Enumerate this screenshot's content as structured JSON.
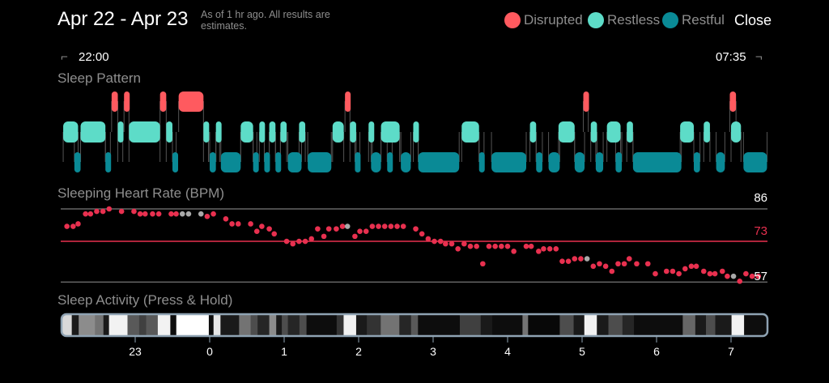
{
  "header": {
    "title": "Apr 22 - Apr 23",
    "subtitle": "As of 1 hr ago. All results are estimates.",
    "close_label": "Close"
  },
  "legend": [
    {
      "label": "Disrupted",
      "color": "#ff5a5f"
    },
    {
      "label": "Restless",
      "color": "#5ddcc8"
    },
    {
      "label": "Restful",
      "color": "#0a8a96"
    }
  ],
  "timeline": {
    "start_label": "22:00",
    "end_label": "07:35",
    "start_hour": 22,
    "duration_min": 575
  },
  "sections": {
    "pattern": "Sleep Pattern",
    "heart": "Sleeping Heart Rate (BPM)",
    "activity": "Sleep Activity (Press & Hold)"
  },
  "sleep_pattern": {
    "restless": [
      [
        2,
        14
      ],
      [
        16,
        36
      ],
      [
        46,
        50
      ],
      [
        55,
        80
      ],
      [
        85,
        90
      ],
      [
        115,
        119
      ],
      [
        125,
        128
      ],
      [
        145,
        155
      ],
      [
        160,
        164
      ],
      [
        168,
        173
      ],
      [
        177,
        182
      ],
      [
        192,
        197
      ],
      [
        219,
        228
      ],
      [
        233,
        238
      ],
      [
        248,
        251
      ],
      [
        258,
        273
      ],
      [
        284,
        288
      ],
      [
        323,
        337
      ],
      [
        378,
        383
      ],
      [
        401,
        414
      ],
      [
        427,
        432
      ],
      [
        440,
        451
      ],
      [
        456,
        461
      ],
      [
        499,
        510
      ],
      [
        518,
        523
      ],
      [
        540,
        548
      ]
    ],
    "restful": [
      [
        11,
        16
      ],
      [
        36,
        40
      ],
      [
        90,
        93
      ],
      [
        120,
        125
      ],
      [
        129,
        145
      ],
      [
        155,
        158
      ],
      [
        164,
        168
      ],
      [
        173,
        177
      ],
      [
        183,
        194
      ],
      [
        199,
        218
      ],
      [
        237,
        241
      ],
      [
        250,
        258
      ],
      [
        263,
        267
      ],
      [
        274,
        282
      ],
      [
        288,
        321
      ],
      [
        337,
        341
      ],
      [
        347,
        375
      ],
      [
        383,
        388
      ],
      [
        393,
        402
      ],
      [
        414,
        422
      ],
      [
        431,
        437
      ],
      [
        447,
        452
      ],
      [
        461,
        500
      ],
      [
        510,
        515
      ],
      [
        528,
        535
      ],
      [
        550,
        569
      ]
    ],
    "disrupted": [
      [
        41,
        46
      ],
      [
        51,
        55
      ],
      [
        80,
        85
      ],
      [
        95,
        115
      ],
      [
        229,
        233
      ],
      [
        421,
        425
      ],
      [
        539,
        544
      ]
    ]
  },
  "heart_rate": {
    "max": 86,
    "avg": 73,
    "min": 57,
    "max_label": "86",
    "avg_label": "73",
    "min_label": "57",
    "points": [
      [
        5,
        79
      ],
      [
        10,
        79
      ],
      [
        14,
        80
      ],
      [
        20,
        84
      ],
      [
        24,
        84
      ],
      [
        29,
        85
      ],
      [
        34,
        85
      ],
      [
        39,
        86
      ],
      [
        49,
        85
      ],
      [
        59,
        85
      ],
      [
        64,
        84
      ],
      [
        68,
        84
      ],
      [
        74,
        84
      ],
      [
        79,
        84
      ],
      [
        89,
        84
      ],
      [
        93,
        84
      ],
      [
        98,
        84,
        "g"
      ],
      [
        103,
        84,
        "g"
      ],
      [
        113,
        84,
        "g"
      ],
      [
        118,
        83
      ],
      [
        123,
        84
      ],
      [
        133,
        82
      ],
      [
        138,
        80
      ],
      [
        143,
        80
      ],
      [
        153,
        80
      ],
      [
        158,
        77
      ],
      [
        162,
        79
      ],
      [
        168,
        78
      ],
      [
        172,
        76
      ],
      [
        182,
        73
      ],
      [
        187,
        72
      ],
      [
        192,
        73
      ],
      [
        197,
        73
      ],
      [
        202,
        74
      ],
      [
        207,
        78
      ],
      [
        212,
        75
      ],
      [
        216,
        78
      ],
      [
        222,
        78
      ],
      [
        227,
        79
      ],
      [
        231,
        79,
        "g"
      ],
      [
        237,
        75
      ],
      [
        241,
        77
      ],
      [
        246,
        77
      ],
      [
        251,
        79
      ],
      [
        256,
        79
      ],
      [
        261,
        79
      ],
      [
        266,
        79
      ],
      [
        271,
        79
      ],
      [
        276,
        79
      ],
      [
        286,
        78
      ],
      [
        291,
        76
      ],
      [
        296,
        74
      ],
      [
        301,
        73
      ],
      [
        306,
        73
      ],
      [
        310,
        72
      ],
      [
        315,
        72
      ],
      [
        320,
        70
      ],
      [
        325,
        72
      ],
      [
        330,
        71
      ],
      [
        335,
        71
      ],
      [
        340,
        64
      ],
      [
        345,
        71
      ],
      [
        350,
        71
      ],
      [
        355,
        71
      ],
      [
        360,
        71
      ],
      [
        365,
        69
      ],
      [
        375,
        71
      ],
      [
        379,
        71
      ],
      [
        385,
        69
      ],
      [
        389,
        70
      ],
      [
        394,
        70
      ],
      [
        399,
        70
      ],
      [
        404,
        65
      ],
      [
        409,
        65
      ],
      [
        414,
        66
      ],
      [
        419,
        66
      ],
      [
        424,
        66,
        "g"
      ],
      [
        429,
        63
      ],
      [
        434,
        64
      ],
      [
        439,
        63
      ],
      [
        444,
        61
      ],
      [
        449,
        64
      ],
      [
        454,
        64
      ],
      [
        458,
        66
      ],
      [
        464,
        64
      ],
      [
        473,
        64
      ],
      [
        479,
        60
      ],
      [
        488,
        61
      ],
      [
        493,
        61
      ],
      [
        498,
        60
      ],
      [
        503,
        62
      ],
      [
        508,
        63
      ],
      [
        512,
        63
      ],
      [
        518,
        61
      ],
      [
        523,
        60
      ],
      [
        527,
        60
      ],
      [
        533,
        61
      ],
      [
        537,
        59
      ],
      [
        542,
        59,
        "g"
      ],
      [
        547,
        57
      ],
      [
        552,
        60
      ],
      [
        557,
        59
      ],
      [
        562,
        59
      ]
    ]
  },
  "activity": {
    "stripes": [
      [
        0,
        8.9,
        0.85
      ],
      [
        8.9,
        14.5,
        0.1
      ],
      [
        14.5,
        27.6,
        0.55
      ],
      [
        27.6,
        34.4,
        0.45
      ],
      [
        34.4,
        38.9,
        0.1
      ],
      [
        38.9,
        53.8,
        0.95
      ],
      [
        53.8,
        63.2,
        0.35
      ],
      [
        63.2,
        68.8,
        0.25
      ],
      [
        68.8,
        78.2,
        0.35
      ],
      [
        78.2,
        88.3,
        0.95
      ],
      [
        88.3,
        93.1,
        0.05
      ],
      [
        93.1,
        119.3,
        1
      ],
      [
        119.3,
        123.1,
        0.05
      ],
      [
        123.1,
        128.7,
        0.9
      ],
      [
        128.7,
        143.7,
        0.1
      ],
      [
        143.7,
        153,
        0.45
      ],
      [
        153,
        158.6,
        0.3
      ],
      [
        158.6,
        168,
        0.15
      ],
      [
        168,
        173.6,
        0.55
      ],
      [
        173.6,
        178.1,
        0.1
      ],
      [
        178.1,
        183,
        0.3
      ],
      [
        183,
        192.3,
        0.15
      ],
      [
        192.3,
        198,
        0.3
      ],
      [
        198,
        222.3,
        0.05
      ],
      [
        222.3,
        227.9,
        0.2
      ],
      [
        227.9,
        238,
        0.95
      ],
      [
        238,
        246.6,
        0.1
      ],
      [
        246.6,
        257.8,
        0.2
      ],
      [
        257.8,
        272.8,
        0.45
      ],
      [
        272.8,
        282.2,
        0.15
      ],
      [
        282.2,
        287.8,
        0.35
      ],
      [
        287.8,
        321.5,
        0.05
      ],
      [
        321.5,
        338.3,
        0.25
      ],
      [
        338.3,
        347.7,
        0.1
      ],
      [
        347.7,
        372,
        0.05
      ],
      [
        372,
        376.5,
        0.45
      ],
      [
        376.5,
        402,
        0.03
      ],
      [
        402,
        413.2,
        0.3
      ],
      [
        413.2,
        421.8,
        0.1
      ],
      [
        421.8,
        431.9,
        0.95
      ],
      [
        431.9,
        441.2,
        0.1
      ],
      [
        441.2,
        452.5,
        0.3
      ],
      [
        452.5,
        461.8,
        0.15
      ],
      [
        461.8,
        501.1,
        0.05
      ],
      [
        501.1,
        511.2,
        0.4
      ],
      [
        511.2,
        519.8,
        0.1
      ],
      [
        519.8,
        527.3,
        0.3
      ],
      [
        527.3,
        540.4,
        0.1
      ],
      [
        540.4,
        550.5,
        0.95
      ],
      [
        550.5,
        575,
        0.05
      ]
    ],
    "ticks": [
      {
        "label": "23",
        "min": 60
      },
      {
        "label": "0",
        "min": 120
      },
      {
        "label": "1",
        "min": 180
      },
      {
        "label": "2",
        "min": 240
      },
      {
        "label": "3",
        "min": 300
      },
      {
        "label": "4",
        "min": 360
      },
      {
        "label": "5",
        "min": 420
      },
      {
        "label": "6",
        "min": 480
      },
      {
        "label": "7",
        "min": 540
      }
    ]
  }
}
